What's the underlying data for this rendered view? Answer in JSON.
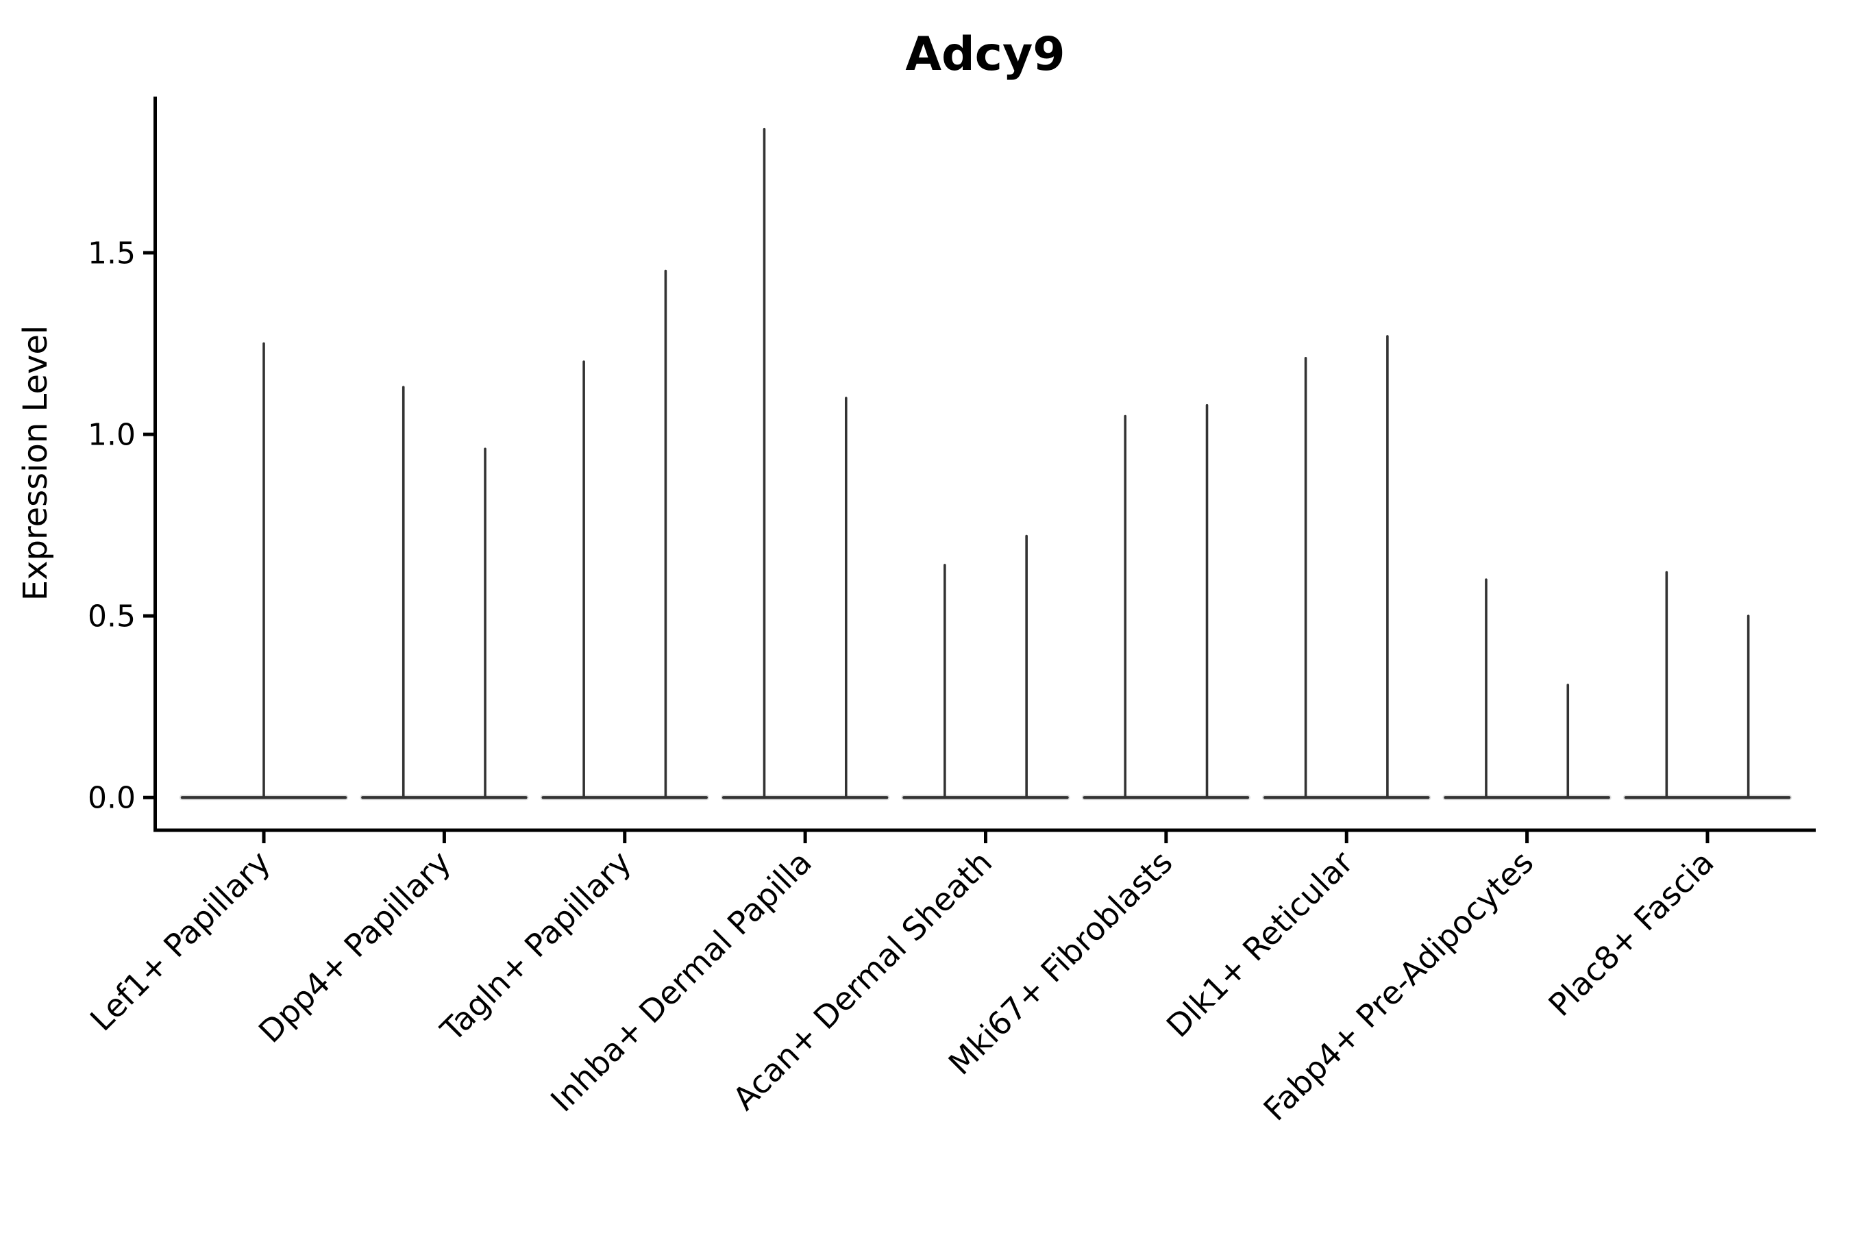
{
  "title": "Adcy9",
  "chart_data": {
    "type": "violin",
    "title": "Adcy9",
    "xlabel": "",
    "ylabel": "Expression Level",
    "categories": [
      "Lef1+ Papillary",
      "Dpp4+ Papillary",
      "Tagln+ Papillary",
      "Inhba+ Dermal Papilla",
      "Acan+ Dermal Sheath",
      "Mki67+ Fibroblasts",
      "Dlk1+ Reticular",
      "Fabp4+ Pre-Adipocytes",
      "Plac8+ Fascia"
    ],
    "violins": [
      {
        "category": "Lef1+ Papillary",
        "maxima": [
          1.25
        ]
      },
      {
        "category": "Dpp4+ Papillary",
        "maxima": [
          1.13,
          0.96
        ]
      },
      {
        "category": "Tagln+ Papillary",
        "maxima": [
          1.2,
          1.45
        ]
      },
      {
        "category": "Inhba+ Dermal Papilla",
        "maxima": [
          1.84,
          1.1
        ]
      },
      {
        "category": "Acan+ Dermal Sheath",
        "maxima": [
          0.64,
          0.72
        ]
      },
      {
        "category": "Mki67+ Fibroblasts",
        "maxima": [
          1.05,
          1.08
        ]
      },
      {
        "category": "Dlk1+ Reticular",
        "maxima": [
          1.21,
          1.27
        ]
      },
      {
        "category": "Fabp4+ Pre-Adipocytes",
        "maxima": [
          0.6,
          0.31
        ]
      },
      {
        "category": "Plac8+ Fascia",
        "maxima": [
          0.62,
          0.5
        ]
      }
    ],
    "all_violins_minimum": 0.0,
    "yticks": [
      0.0,
      0.5,
      1.0,
      1.5
    ],
    "ytick_labels": [
      "0.0",
      "0.5",
      "1.0",
      "1.5"
    ],
    "ylim": [
      -0.09,
      1.93
    ],
    "xlim": [
      0.4,
      9.6
    ],
    "group_offset": 0.2265,
    "violin_half_width": 0.4525,
    "grid": false,
    "legend": "none"
  },
  "style": {
    "background": "#ffffff",
    "axis_color": "#000000",
    "violin_color": "#333333",
    "violin_halo_color": "#888888",
    "text_color": "#000000"
  }
}
